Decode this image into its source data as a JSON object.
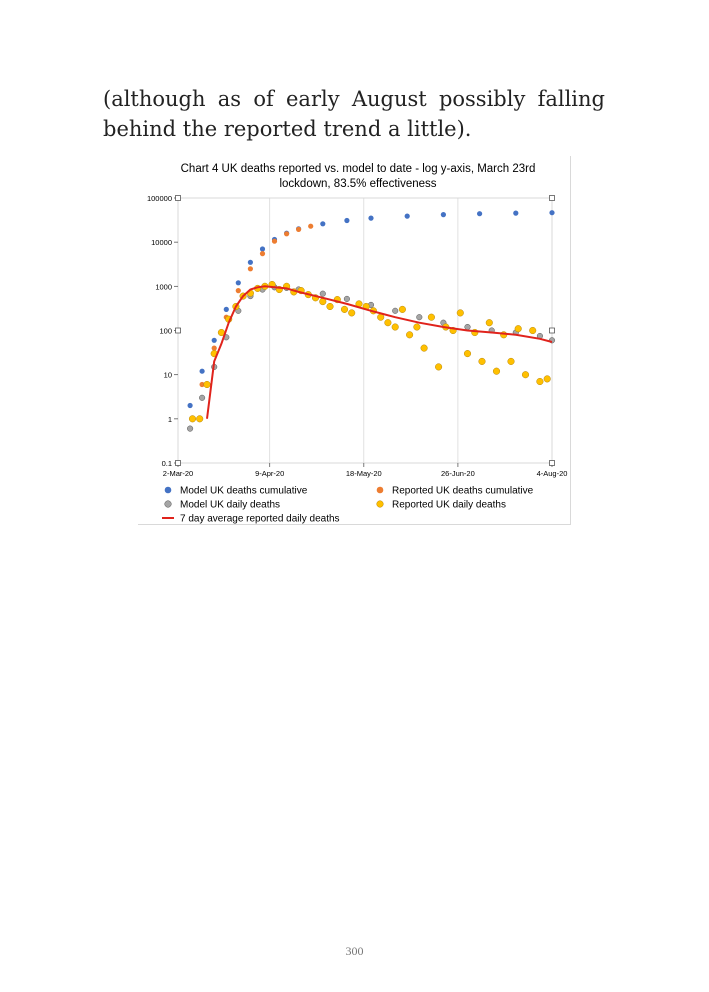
{
  "paragraph": "(although as of early August possibly falling behind the reported trend a little).",
  "page_number": "300",
  "chart_data": {
    "type": "scatter",
    "title_line1": "Chart 4 UK deaths reported vs. model to date - log y-axis, March 23rd",
    "title_line2": "lockdown, 83.5% effectiveness",
    "y_scale": "log",
    "ylim": [
      0.1,
      100000
    ],
    "y_ticks": [
      "0.1",
      "1",
      "10",
      "100",
      "1000",
      "10000",
      "100000"
    ],
    "x_ticks": [
      "2-Mar-20",
      "9-Apr-20",
      "18-May-20",
      "26-Jun-20",
      "4-Aug-20"
    ],
    "x_range_days": [
      0,
      155
    ],
    "x_tick_days": [
      0,
      38,
      77,
      116,
      155
    ],
    "legend_position": "bottom",
    "grid": "vertical",
    "colors": {
      "model_cumulative": "#4472c4",
      "reported_cumulative": "#ed7d31",
      "model_daily": "#a5a5a5",
      "reported_daily": "#ffc000",
      "avg_line": "#e0231c"
    },
    "series": [
      {
        "key": "model_cumulative",
        "name": "Model UK deaths cumulative",
        "marker": "circle",
        "x": [
          5,
          10,
          15,
          20,
          25,
          30,
          35,
          40,
          45,
          50,
          60,
          70,
          80,
          95,
          110,
          125,
          140,
          155
        ],
        "y": [
          2,
          12,
          60,
          300,
          1200,
          3500,
          7000,
          11500,
          16000,
          20000,
          26000,
          31000,
          35000,
          39000,
          42000,
          44000,
          45500,
          46500
        ]
      },
      {
        "key": "reported_cumulative",
        "name": "Reported UK deaths cumulative",
        "marker": "circle",
        "x": [
          6,
          10,
          15,
          20,
          25,
          30,
          35,
          40,
          45,
          50,
          55
        ],
        "y": [
          1,
          6,
          40,
          200,
          800,
          2500,
          5500,
          10500,
          15500,
          19500,
          23000
        ]
      },
      {
        "key": "model_daily",
        "name": "Model UK daily deaths",
        "marker": "circle",
        "x": [
          5,
          10,
          15,
          20,
          25,
          30,
          35,
          40,
          45,
          50,
          60,
          70,
          80,
          90,
          100,
          110,
          120,
          130,
          140,
          150,
          155
        ],
        "y": [
          0.6,
          3,
          15,
          70,
          280,
          600,
          850,
          950,
          920,
          850,
          680,
          520,
          380,
          280,
          200,
          150,
          120,
          100,
          90,
          75,
          60
        ]
      },
      {
        "key": "reported_daily",
        "name": "Reported UK daily deaths",
        "marker": "circle",
        "x": [
          6,
          9,
          12,
          15,
          18,
          21,
          24,
          27,
          30,
          33,
          36,
          39,
          42,
          45,
          48,
          51,
          54,
          57,
          60,
          63,
          66,
          69,
          72,
          75,
          78,
          81,
          84,
          87,
          90,
          93,
          96,
          99,
          102,
          105,
          108,
          111,
          114,
          117,
          120,
          123,
          126,
          129,
          132,
          135,
          138,
          141,
          144,
          147,
          150,
          153
        ],
        "y": [
          1,
          1,
          6,
          30,
          90,
          180,
          350,
          600,
          700,
          900,
          1000,
          1100,
          850,
          1000,
          750,
          800,
          650,
          550,
          450,
          350,
          500,
          300,
          250,
          400,
          350,
          280,
          200,
          150,
          120,
          300,
          80,
          120,
          40,
          200,
          15,
          120,
          100,
          250,
          30,
          90,
          20,
          150,
          12,
          80,
          20,
          110,
          10,
          100,
          7,
          8
        ]
      },
      {
        "key": "avg_line",
        "name": "7 day average reported daily deaths",
        "marker": "line",
        "x": [
          12,
          15,
          18,
          21,
          24,
          27,
          30,
          33,
          36,
          40,
          45,
          50,
          60,
          70,
          80,
          90,
          100,
          110,
          120,
          130,
          140,
          150,
          155
        ],
        "y": [
          1,
          20,
          50,
          150,
          350,
          600,
          850,
          950,
          1000,
          950,
          900,
          750,
          550,
          400,
          280,
          200,
          150,
          120,
          100,
          90,
          80,
          65,
          55
        ]
      }
    ]
  }
}
